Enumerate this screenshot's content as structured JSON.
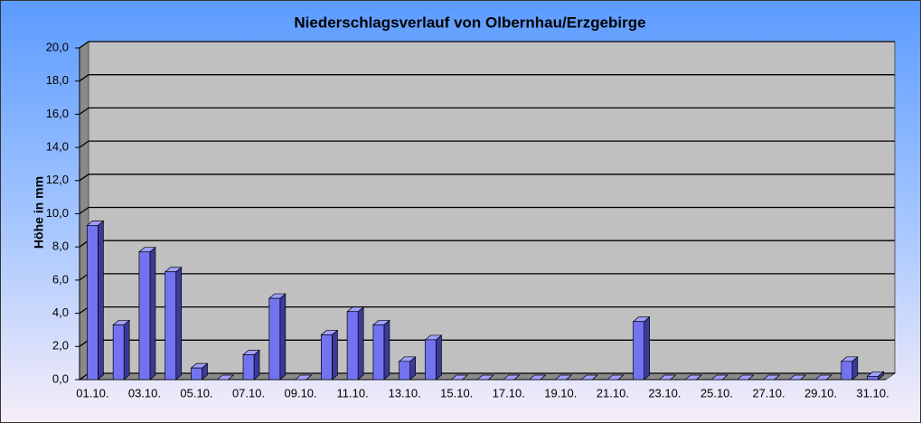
{
  "chart_data": {
    "type": "bar",
    "title": "Niederschlagsverlauf von Olbernhau/Erzgebirge",
    "y_label": "Höhe in  mm",
    "categories": [
      "01.10.",
      null,
      "03.10.",
      null,
      "05.10.",
      null,
      "07.10.",
      null,
      "09.10.",
      null,
      "11.10.",
      null,
      "13.10.",
      null,
      "15.10.",
      null,
      "17.10.",
      null,
      "19.10.",
      null,
      "21.10.",
      null,
      "23.10.",
      null,
      "25.10.",
      null,
      "27.10.",
      null,
      "29.10.",
      null,
      "31.10."
    ],
    "values": [
      9.3,
      3.3,
      7.7,
      6.5,
      0.7,
      0,
      1.5,
      4.9,
      0,
      2.7,
      4.1,
      3.3,
      1.1,
      2.4,
      0,
      0,
      0,
      0,
      0,
      0,
      0,
      3.5,
      0,
      0,
      0,
      0,
      0,
      0,
      0,
      1.1,
      0.2
    ],
    "color": "#7373f2",
    "ylim": [
      0,
      20
    ],
    "yticks": [
      {
        "value": 0,
        "label": "0,0"
      },
      {
        "value": 2,
        "label": "2,0"
      },
      {
        "value": 4,
        "label": "4,0"
      },
      {
        "value": 6,
        "label": "6,0"
      },
      {
        "value": 8,
        "label": "8,0"
      },
      {
        "value": 10,
        "label": "10,0"
      },
      {
        "value": 12,
        "label": "12,0"
      },
      {
        "value": 14,
        "label": "14,0"
      },
      {
        "value": 16,
        "label": "16,0"
      },
      {
        "value": 18,
        "label": "18,0"
      },
      {
        "value": 20,
        "label": "20,0"
      }
    ],
    "grid": true
  }
}
